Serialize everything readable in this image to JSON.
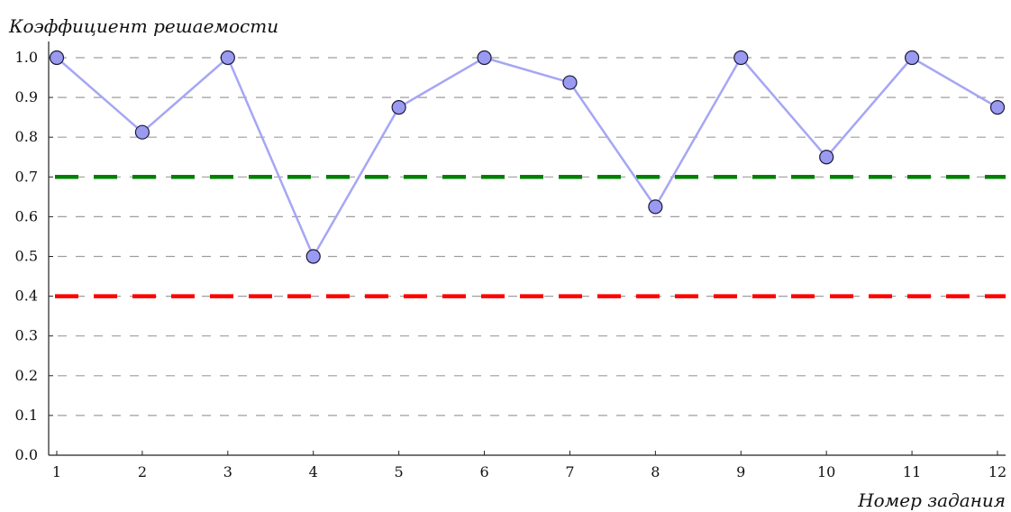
{
  "chart_data": {
    "type": "line",
    "ylabel": "Коэффициент решаемости",
    "xlabel": "Номер задания",
    "x": [
      1,
      2,
      3,
      4,
      5,
      6,
      7,
      8,
      9,
      10,
      11,
      12
    ],
    "series": [
      {
        "values": [
          1.0,
          0.8125,
          1.0,
          0.5,
          0.875,
          1.0,
          0.9375,
          0.625,
          1.0,
          0.75,
          1.0,
          0.875
        ],
        "line_color": "#a6a6f5",
        "marker_fill": "#9a9af0",
        "marker_edge": "#1a1a3a"
      }
    ],
    "thresholds": [
      {
        "value": 0.7,
        "color": "#008000"
      },
      {
        "value": 0.4,
        "color": "#ff0000"
      }
    ],
    "ylim": [
      0.0,
      1.0
    ],
    "xlim": [
      1,
      12
    ],
    "y_ticks": [
      "0.0",
      "0.1",
      "0.2",
      "0.3",
      "0.4",
      "0.5",
      "0.6",
      "0.7",
      "0.8",
      "0.9",
      "1.0"
    ],
    "x_ticks": [
      "1",
      "2",
      "3",
      "4",
      "5",
      "6",
      "7",
      "8",
      "9",
      "10",
      "11",
      "12"
    ],
    "grid": "horizontal-dashed",
    "grid_color": "#9e9e9e"
  }
}
